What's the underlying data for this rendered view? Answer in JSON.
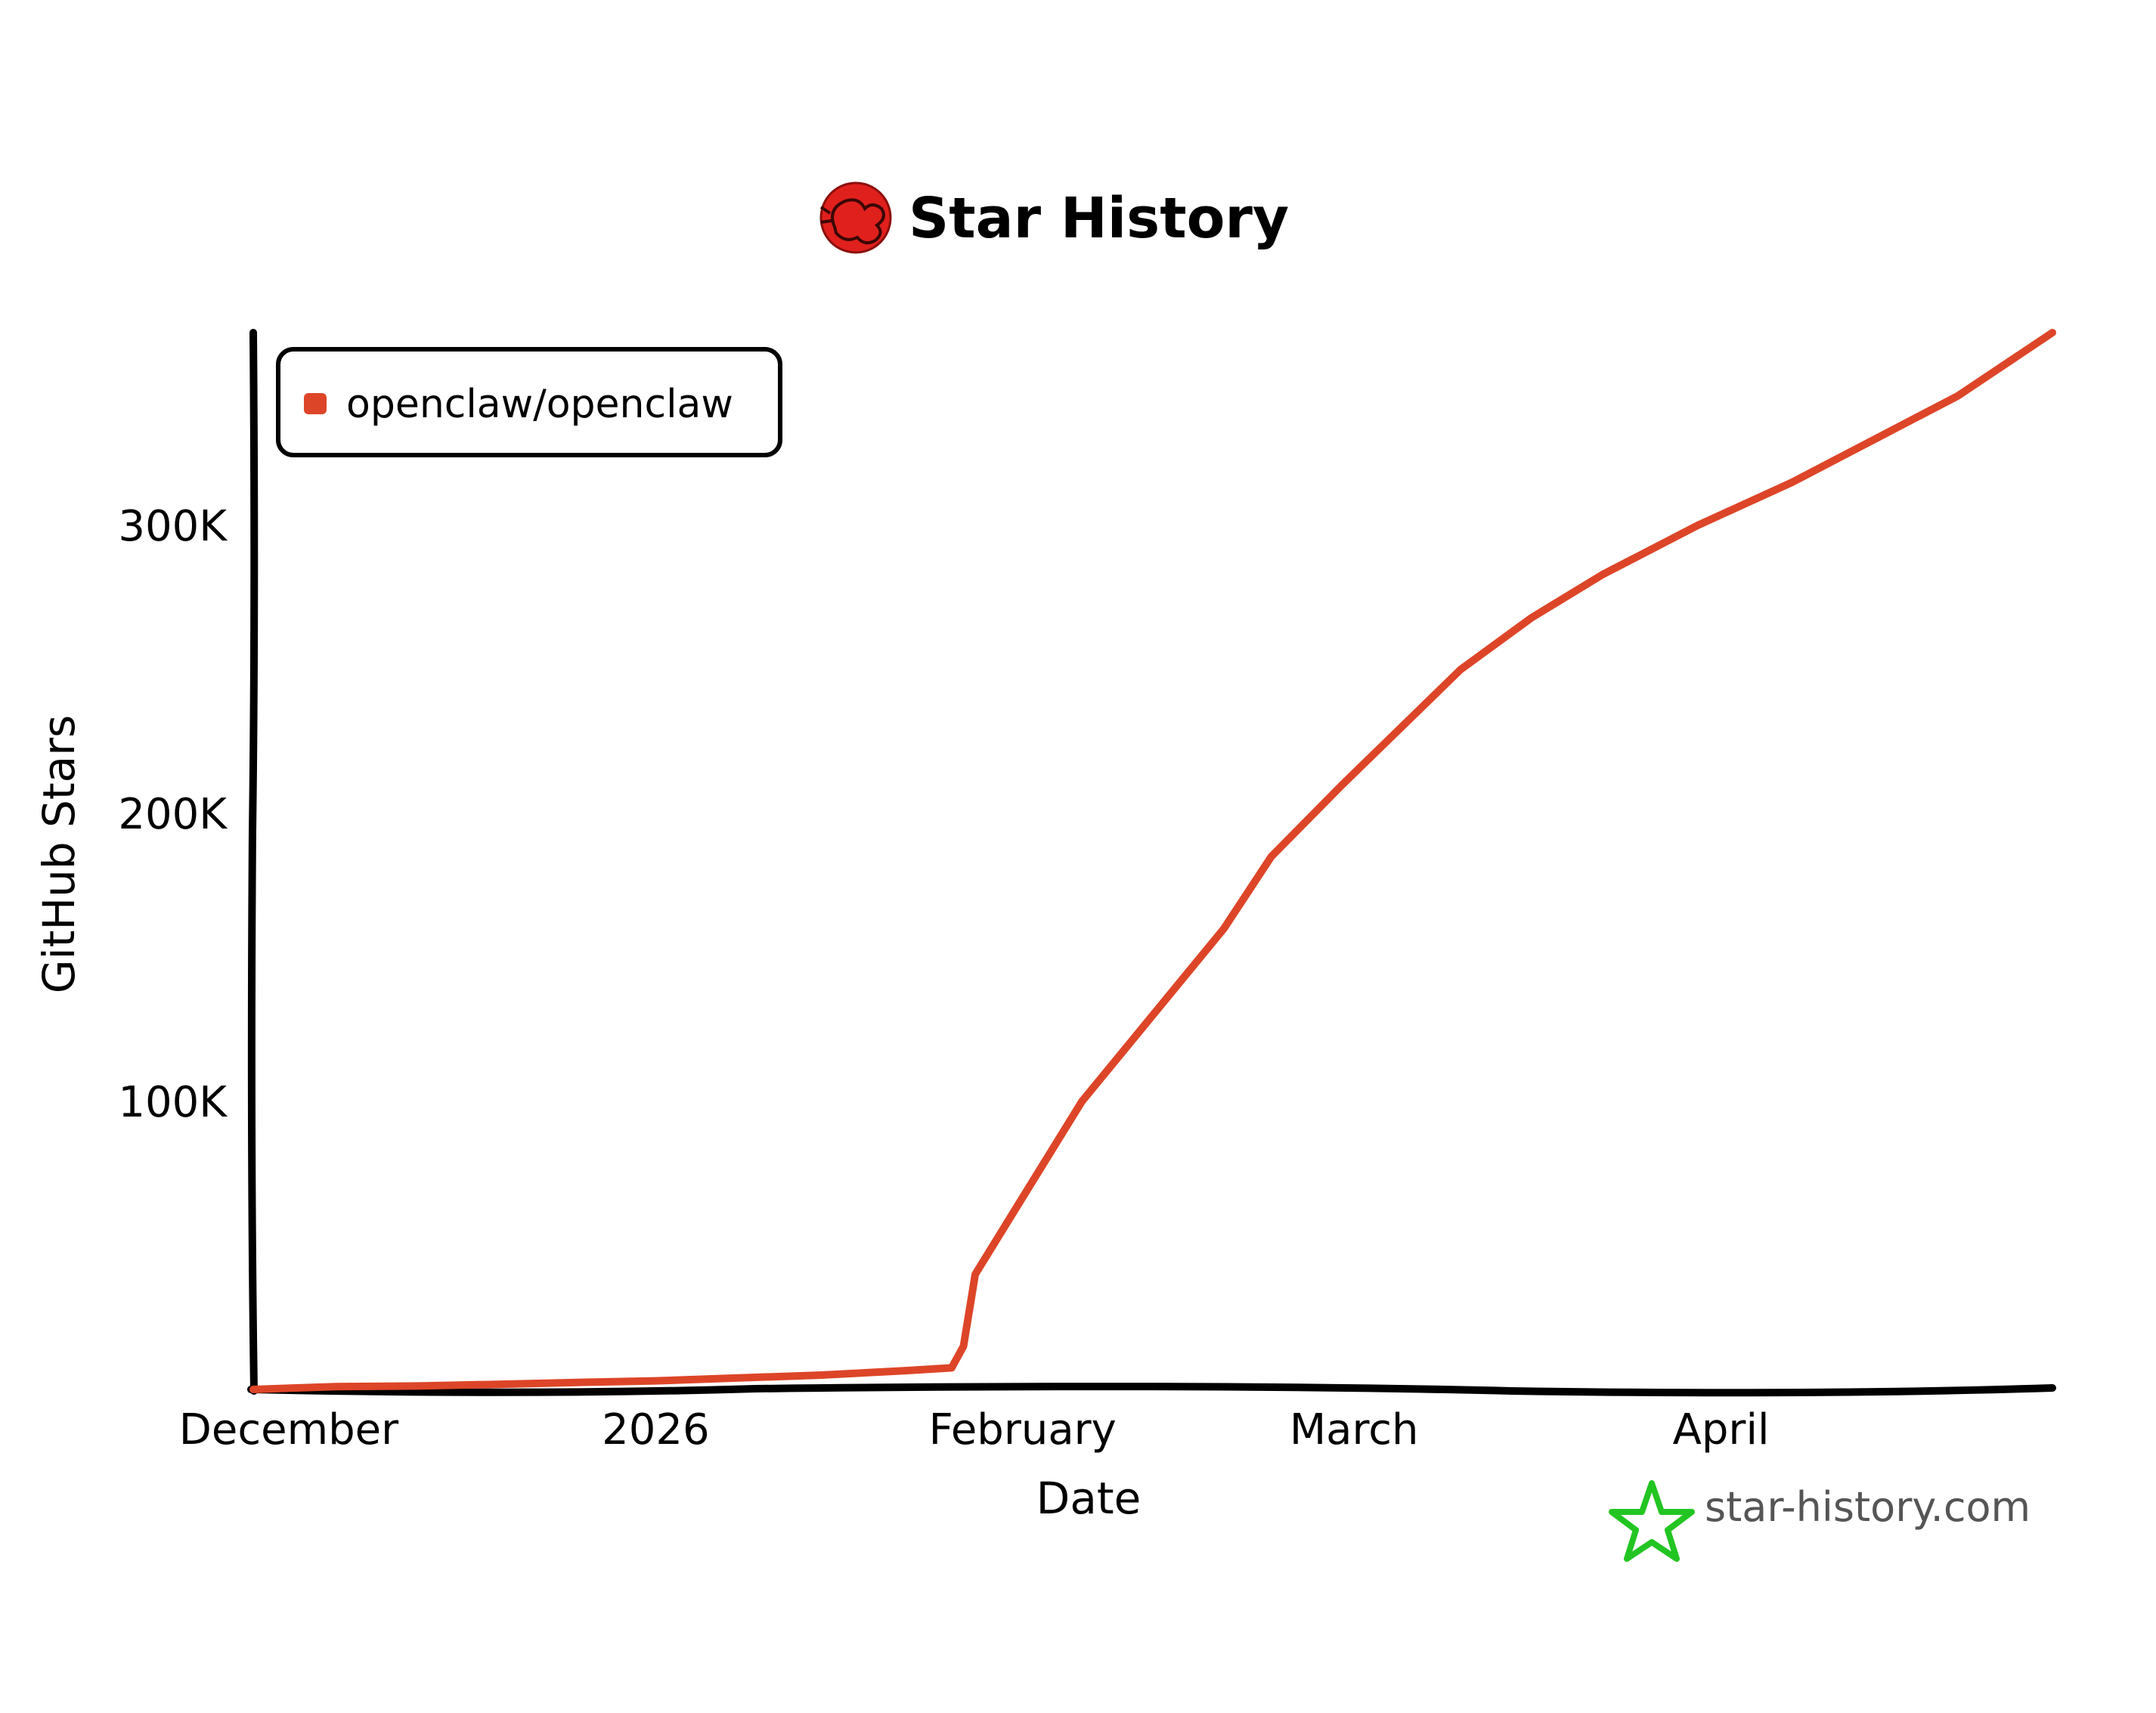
{
  "chart_data": {
    "type": "line",
    "title": "Star History",
    "xlabel": "Date",
    "ylabel": "GitHub Stars",
    "x_tick_labels": [
      "December",
      "2026",
      "February",
      "March",
      "April"
    ],
    "x_tick_dates": [
      "2025-12-01",
      "2026-01-01",
      "2026-02-01",
      "2026-03-01",
      "2026-04-01"
    ],
    "y_tick_labels": [
      "100K",
      "200K",
      "300K"
    ],
    "y_tick_values": [
      100000,
      200000,
      300000
    ],
    "xlim": [
      "2025-11-28",
      "2026-04-29"
    ],
    "ylim": [
      0,
      367000
    ],
    "grid": false,
    "legend_position": "top-left",
    "series": [
      {
        "name": "openclaw/openclaw",
        "color": "#dd4528",
        "points": [
          {
            "x": "2025-11-28",
            "y": 0
          },
          {
            "x": "2025-12-05",
            "y": 1000
          },
          {
            "x": "2025-12-12",
            "y": 1200
          },
          {
            "x": "2025-12-19",
            "y": 1800
          },
          {
            "x": "2025-12-26",
            "y": 2500
          },
          {
            "x": "2026-01-01",
            "y": 3000
          },
          {
            "x": "2026-01-08",
            "y": 4000
          },
          {
            "x": "2026-01-15",
            "y": 5000
          },
          {
            "x": "2026-01-22",
            "y": 6500
          },
          {
            "x": "2026-01-26",
            "y": 7500
          },
          {
            "x": "2026-01-27",
            "y": 15000
          },
          {
            "x": "2026-01-28",
            "y": 40000
          },
          {
            "x": "2026-01-31",
            "y": 60000
          },
          {
            "x": "2026-02-03",
            "y": 80000
          },
          {
            "x": "2026-02-06",
            "y": 100000
          },
          {
            "x": "2026-02-10",
            "y": 120000
          },
          {
            "x": "2026-02-14",
            "y": 140000
          },
          {
            "x": "2026-02-18",
            "y": 160000
          },
          {
            "x": "2026-02-22",
            "y": 185000
          },
          {
            "x": "2026-02-28",
            "y": 210000
          },
          {
            "x": "2026-03-05",
            "y": 230000
          },
          {
            "x": "2026-03-10",
            "y": 250000
          },
          {
            "x": "2026-03-16",
            "y": 268000
          },
          {
            "x": "2026-03-22",
            "y": 283000
          },
          {
            "x": "2026-03-30",
            "y": 300000
          },
          {
            "x": "2026-04-07",
            "y": 315000
          },
          {
            "x": "2026-04-14",
            "y": 330000
          },
          {
            "x": "2026-04-21",
            "y": 345000
          },
          {
            "x": "2026-04-29",
            "y": 367000
          }
        ]
      }
    ]
  },
  "brand": {
    "site": "star-history.com",
    "logo_icon": "lobster-avatar-icon",
    "brand_icon": "star-outline-icon",
    "brand_icon_color": "#22c522",
    "logo_color": "#e0201c"
  }
}
